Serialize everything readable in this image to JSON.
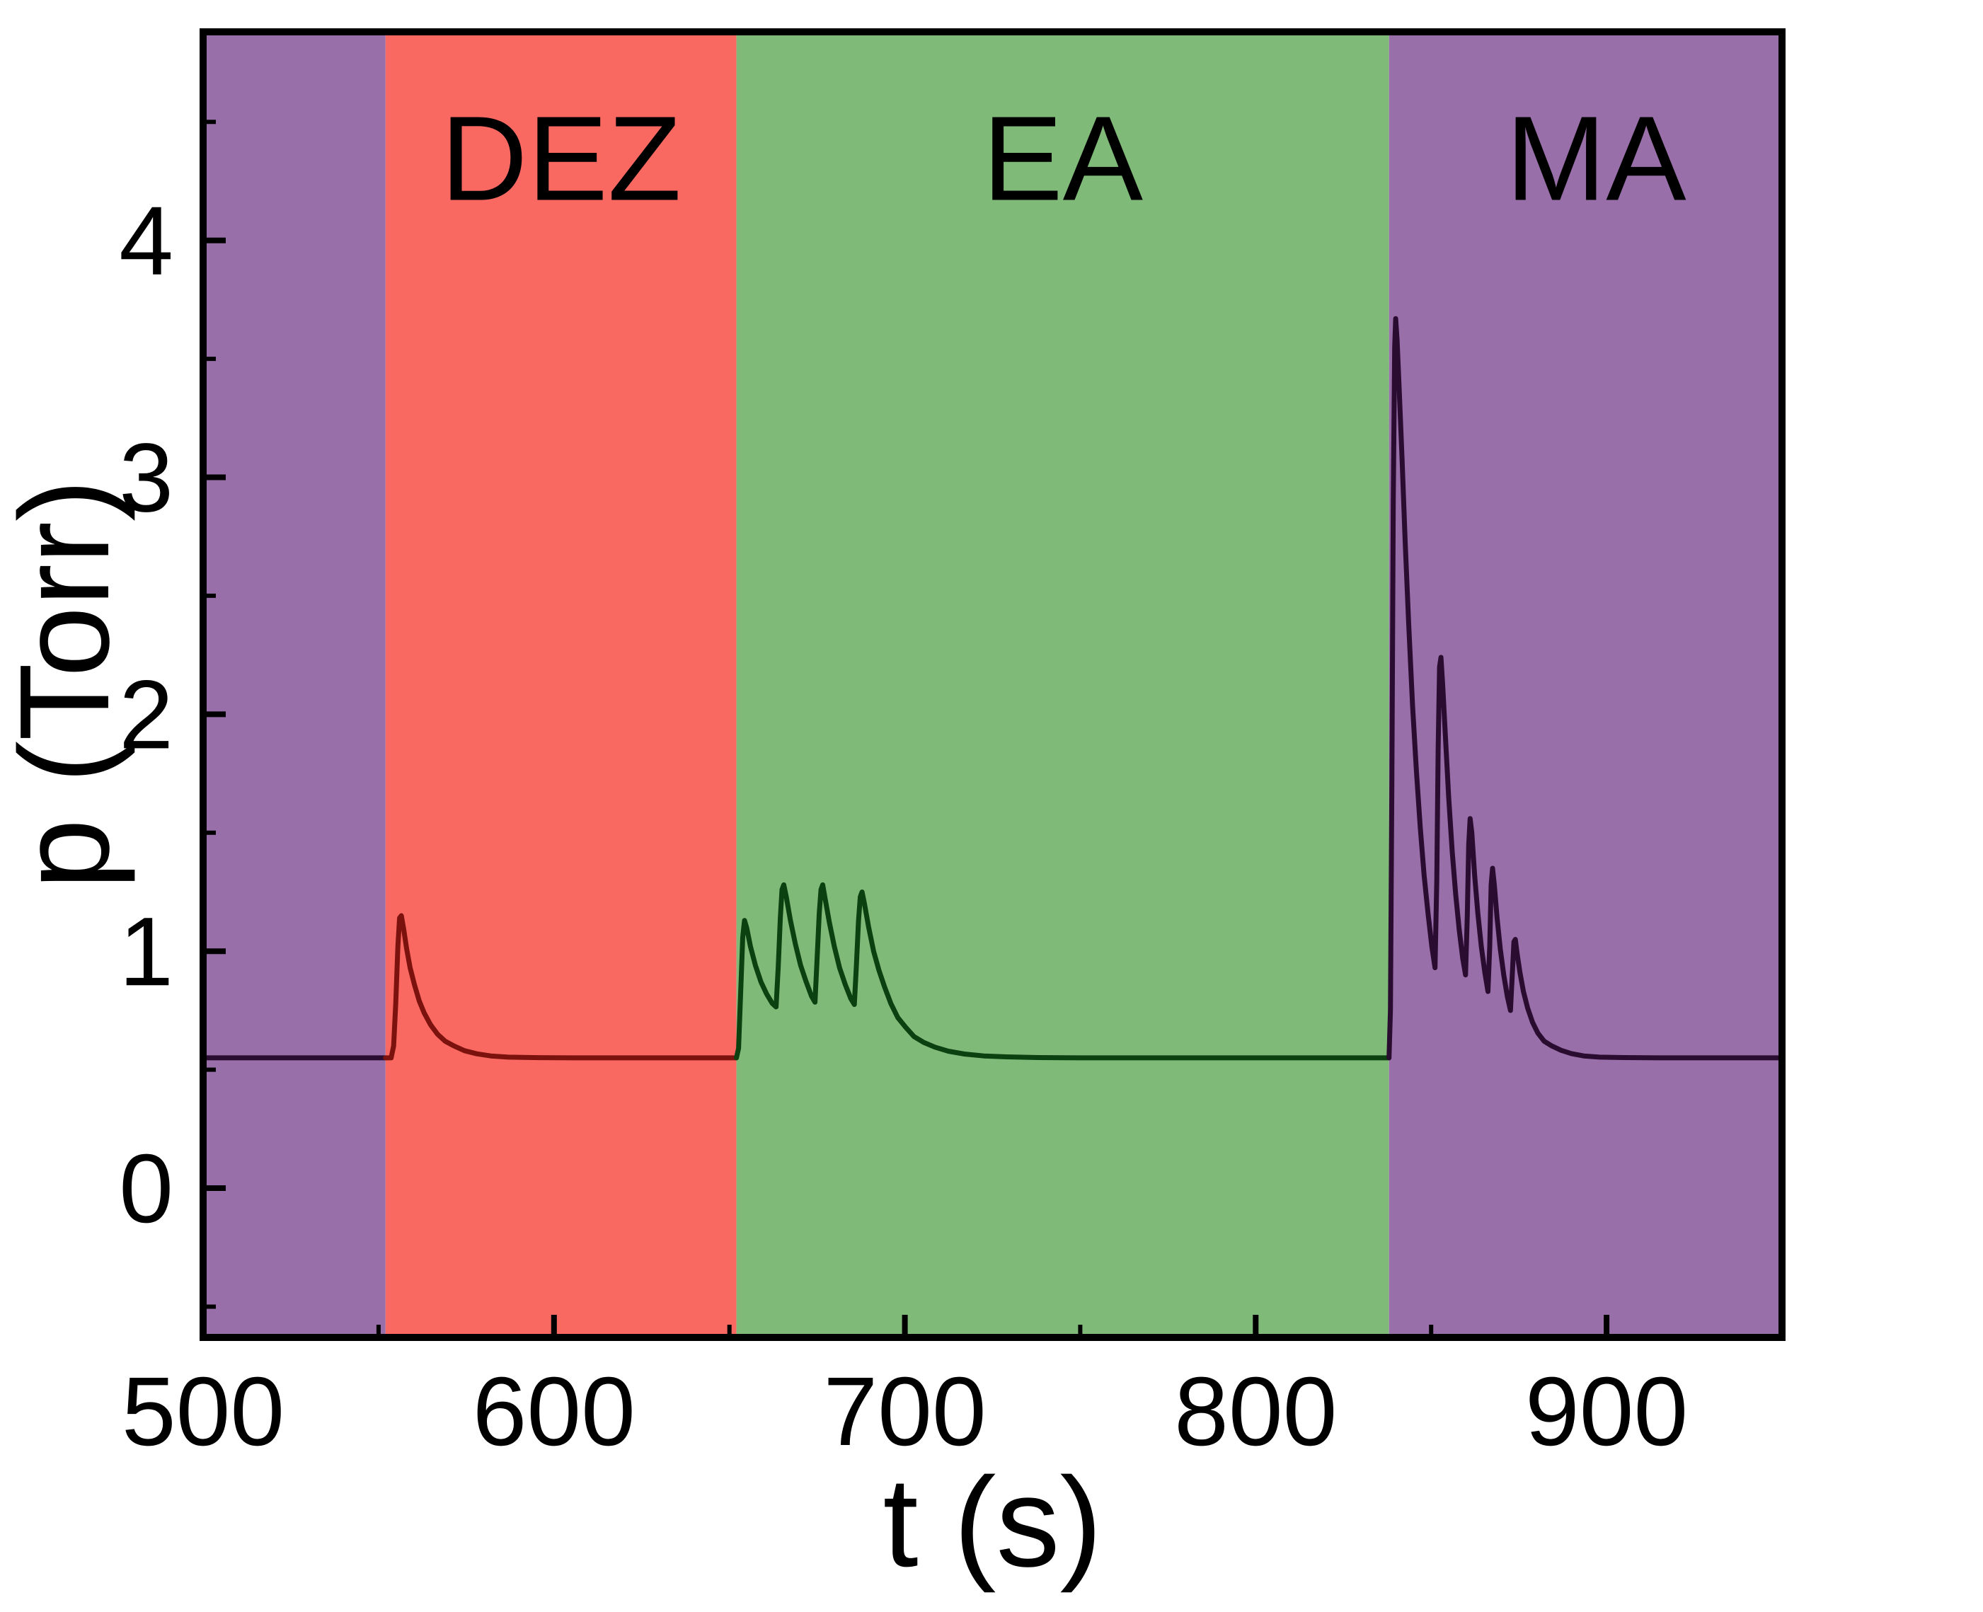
{
  "chart_data": {
    "type": "line",
    "title": "",
    "xlabel": "t (s)",
    "ylabel": "p (Torr)",
    "xlim": [
      500,
      950
    ],
    "ylim": [
      -0.63,
      4.88
    ],
    "xticks": [
      500,
      600,
      700,
      800,
      900
    ],
    "yticks": [
      0,
      1,
      2,
      3,
      4
    ],
    "x_minor_ticks": [
      550,
      650,
      750,
      850
    ],
    "y_minor_ticks": [
      -0.5,
      0.5,
      1.5,
      2.5,
      3.5,
      4.5
    ],
    "grid": false,
    "legend": null,
    "region_label_p": 4.35,
    "baseline_p": 0.55,
    "background_regions": [
      {
        "name": "purge-left",
        "label": "",
        "x0": 500,
        "x1": 552,
        "label_t": 526,
        "fill": "#996fa9",
        "line_color": "#2a0c30"
      },
      {
        "name": "DEZ",
        "label": "DEZ",
        "x0": 552,
        "x1": 652,
        "label_t": 602,
        "fill": "#f96962",
        "line_color": "#7b120e"
      },
      {
        "name": "EA",
        "label": "EA",
        "x0": 652,
        "x1": 838,
        "label_t": 745,
        "fill": "#80ba79",
        "line_color": "#0b4010"
      },
      {
        "name": "MA",
        "label": "MA",
        "x0": 838,
        "x1": 950,
        "label_t": 897,
        "fill": "#996fa9",
        "line_color": "#2a0c30"
      }
    ],
    "series": [
      {
        "name": "chamber-pressure",
        "points": [
          [
            500,
            0.55
          ],
          [
            520,
            0.55
          ],
          [
            540,
            0.55
          ],
          [
            552,
            0.55
          ],
          [
            553.6,
            0.55
          ],
          [
            554.3,
            0.6
          ],
          [
            554.9,
            0.78
          ],
          [
            555.5,
            1.02
          ],
          [
            556,
            1.14
          ],
          [
            556.5,
            1.15
          ],
          [
            557.2,
            1.09
          ],
          [
            558,
            1.01
          ],
          [
            559,
            0.93
          ],
          [
            560.2,
            0.86
          ],
          [
            561.6,
            0.79
          ],
          [
            563,
            0.74
          ],
          [
            564.8,
            0.69
          ],
          [
            566.8,
            0.65
          ],
          [
            569,
            0.62
          ],
          [
            571.5,
            0.6
          ],
          [
            574.5,
            0.58
          ],
          [
            578,
            0.567
          ],
          [
            582,
            0.558
          ],
          [
            587,
            0.553
          ],
          [
            594,
            0.551
          ],
          [
            605,
            0.55
          ],
          [
            625,
            0.55
          ],
          [
            645,
            0.55
          ],
          [
            652,
            0.55
          ],
          [
            652.6,
            0.59
          ],
          [
            653.2,
            0.82
          ],
          [
            653.8,
            1.06
          ],
          [
            654.3,
            1.13
          ],
          [
            654.9,
            1.1
          ],
          [
            656,
            1.02
          ],
          [
            657.4,
            0.94
          ],
          [
            659,
            0.87
          ],
          [
            660.6,
            0.82
          ],
          [
            662.2,
            0.78
          ],
          [
            663.3,
            0.765
          ],
          [
            663.9,
            0.93
          ],
          [
            664.5,
            1.14
          ],
          [
            665,
            1.26
          ],
          [
            665.5,
            1.28
          ],
          [
            666.2,
            1.23
          ],
          [
            667.4,
            1.13
          ],
          [
            668.8,
            1.03
          ],
          [
            670.3,
            0.94
          ],
          [
            671.9,
            0.87
          ],
          [
            673.4,
            0.81
          ],
          [
            674.4,
            0.785
          ],
          [
            675,
            0.97
          ],
          [
            675.6,
            1.16
          ],
          [
            676.1,
            1.26
          ],
          [
            676.6,
            1.28
          ],
          [
            677.3,
            1.22
          ],
          [
            678.5,
            1.12
          ],
          [
            679.9,
            1.02
          ],
          [
            681.4,
            0.93
          ],
          [
            683,
            0.86
          ],
          [
            684.6,
            0.8
          ],
          [
            685.6,
            0.775
          ],
          [
            686.2,
            0.94
          ],
          [
            686.8,
            1.13
          ],
          [
            687.3,
            1.23
          ],
          [
            687.8,
            1.25
          ],
          [
            688.5,
            1.2
          ],
          [
            689.7,
            1.1
          ],
          [
            691.1,
            1.0
          ],
          [
            692.6,
            0.92
          ],
          [
            694.2,
            0.85
          ],
          [
            696,
            0.78
          ],
          [
            698,
            0.72
          ],
          [
            700.2,
            0.68
          ],
          [
            702.6,
            0.64
          ],
          [
            705.4,
            0.615
          ],
          [
            708.6,
            0.595
          ],
          [
            712.4,
            0.578
          ],
          [
            717,
            0.566
          ],
          [
            722.5,
            0.558
          ],
          [
            729,
            0.554
          ],
          [
            738,
            0.551
          ],
          [
            752,
            0.55
          ],
          [
            775,
            0.55
          ],
          [
            800,
            0.55
          ],
          [
            825,
            0.55
          ],
          [
            838,
            0.55
          ],
          [
            838.4,
            0.75
          ],
          [
            838.8,
            1.7
          ],
          [
            839.2,
            2.9
          ],
          [
            839.6,
            3.55
          ],
          [
            839.9,
            3.67
          ],
          [
            840.3,
            3.58
          ],
          [
            840.9,
            3.37
          ],
          [
            841.7,
            3.08
          ],
          [
            842.6,
            2.73
          ],
          [
            843.6,
            2.38
          ],
          [
            844.7,
            2.04
          ],
          [
            845.8,
            1.76
          ],
          [
            846.9,
            1.52
          ],
          [
            848,
            1.32
          ],
          [
            849.1,
            1.16
          ],
          [
            850.2,
            1.02
          ],
          [
            851.1,
            0.93
          ],
          [
            851.6,
            1.3
          ],
          [
            852,
            1.85
          ],
          [
            852.4,
            2.2
          ],
          [
            852.8,
            2.24
          ],
          [
            853.3,
            2.12
          ],
          [
            854.1,
            1.9
          ],
          [
            855,
            1.65
          ],
          [
            856,
            1.42
          ],
          [
            857,
            1.24
          ],
          [
            858,
            1.09
          ],
          [
            859,
            0.97
          ],
          [
            859.8,
            0.9
          ],
          [
            860.3,
            1.15
          ],
          [
            860.7,
            1.45
          ],
          [
            861.1,
            1.56
          ],
          [
            861.6,
            1.5
          ],
          [
            862.4,
            1.32
          ],
          [
            863.3,
            1.16
          ],
          [
            864.3,
            1.02
          ],
          [
            865.3,
            0.91
          ],
          [
            866.2,
            0.83
          ],
          [
            866.7,
            1.02
          ],
          [
            867.1,
            1.28
          ],
          [
            867.5,
            1.35
          ],
          [
            868,
            1.28
          ],
          [
            868.8,
            1.14
          ],
          [
            869.7,
            1.01
          ],
          [
            870.7,
            0.9
          ],
          [
            871.7,
            0.81
          ],
          [
            872.6,
            0.75
          ],
          [
            873.2,
            0.92
          ],
          [
            873.6,
            1.04
          ],
          [
            874,
            1.05
          ],
          [
            874.5,
            0.99
          ],
          [
            875.3,
            0.91
          ],
          [
            876.3,
            0.83
          ],
          [
            877.5,
            0.76
          ],
          [
            878.9,
            0.7
          ],
          [
            880.4,
            0.655
          ],
          [
            882.2,
            0.62
          ],
          [
            884.4,
            0.6
          ],
          [
            887,
            0.582
          ],
          [
            890,
            0.568
          ],
          [
            893.5,
            0.558
          ],
          [
            898,
            0.553
          ],
          [
            905,
            0.551
          ],
          [
            915,
            0.55
          ],
          [
            930,
            0.55
          ],
          [
            950,
            0.55
          ]
        ]
      }
    ]
  }
}
